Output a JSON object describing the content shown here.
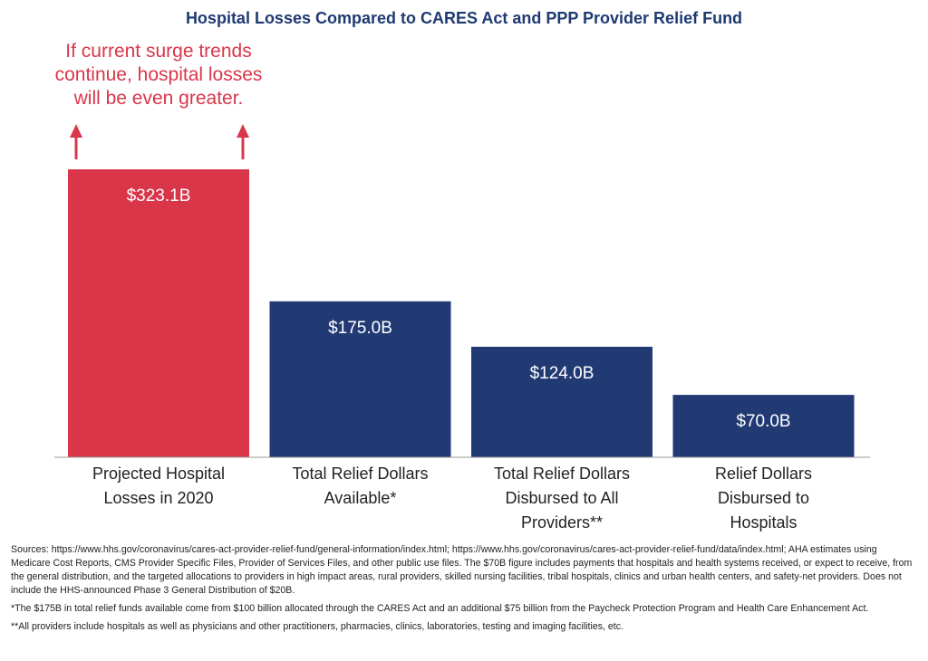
{
  "chart_data": {
    "type": "bar",
    "title": "Hospital Losses Compared to CARES Act and PPP Provider Relief Fund",
    "categories": [
      [
        "Projected Hospital",
        "Losses in 2020"
      ],
      [
        "Total Relief Dollars",
        "Available*"
      ],
      [
        "Total Relief Dollars",
        "Disbursed to All",
        "Providers**"
      ],
      [
        "Relief Dollars",
        "Disbursed to",
        "Hospitals"
      ]
    ],
    "values": [
      323.1,
      175.0,
      124.0,
      70.0
    ],
    "value_labels": [
      "$323.1B",
      "$175.0B",
      "$124.0B",
      "$70.0B"
    ],
    "colors": [
      "#d9364a",
      "#213a74",
      "#213a74",
      "#213a74"
    ],
    "ylim": [
      0,
      323.1
    ],
    "grid": false,
    "annotation": [
      "If current surge trends",
      "continue, hospital losses",
      "will be even greater."
    ]
  },
  "footnotes": {
    "sources": "Sources: https://www.hhs.gov/coronavirus/cares-act-provider-relief-fund/general-information/index.html; https://www.hhs.gov/coronavirus/cares-act-provider-relief-fund/data/index.html; AHA estimates using Medicare Cost Reports, CMS Provider Specific Files, Provider of Services Files, and other public use files. The $70B figure includes payments that hospitals and health systems received, or expect to receive, from the general distribution, and the targeted allocations to providers in high impact areas, rural providers, skilled nursing facilities, tribal hospitals, clinics and urban health centers, and safety-net providers. Does not include the HHS-announced Phase 3 General Distribution of $20B.",
    "note1": "*The $175B in total relief funds available come from $100 billion allocated through the CARES Act and an additional $75 billion from the Paycheck Protection Program and Health Care Enhancement Act.",
    "note2": "**All providers include hospitals as well as physicians and other practitioners, pharmacies, clinics, laboratories, testing and imaging facilities, etc."
  }
}
